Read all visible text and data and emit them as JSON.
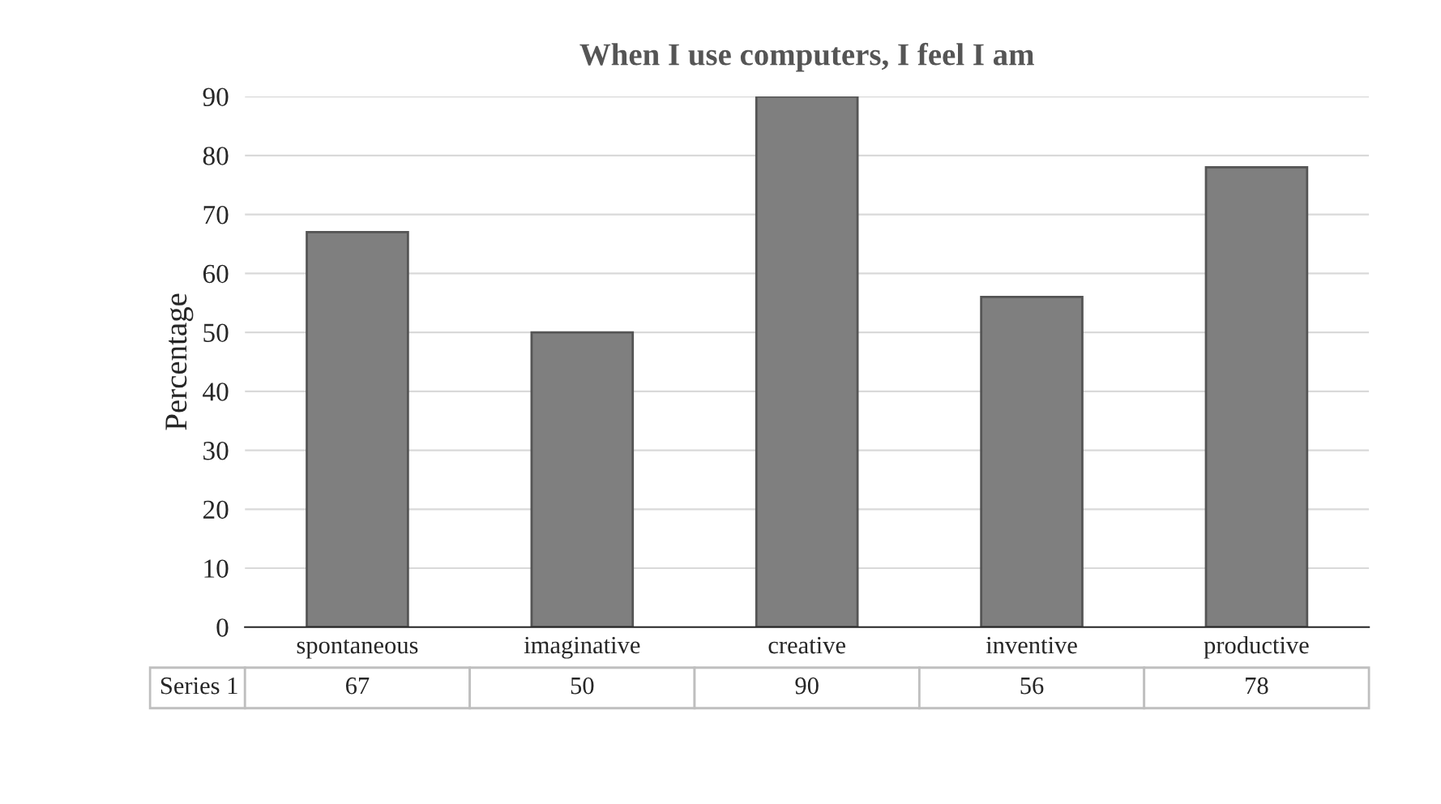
{
  "chart_data": {
    "type": "bar",
    "title": "When I use computers, I feel I am",
    "ylabel": "Percentage",
    "categories": [
      "spontaneous",
      "imaginative",
      "creative",
      "inventive",
      "productive"
    ],
    "series": [
      {
        "name": "Series 1",
        "color": "#7f7f7f",
        "values": [
          67,
          50,
          90,
          56,
          78
        ]
      }
    ],
    "ylim": [
      0,
      90
    ],
    "yticks": [
      0,
      10,
      20,
      30,
      40,
      50,
      60,
      70,
      80,
      90
    ],
    "grid": "y",
    "data_labels": true,
    "legend": false
  }
}
